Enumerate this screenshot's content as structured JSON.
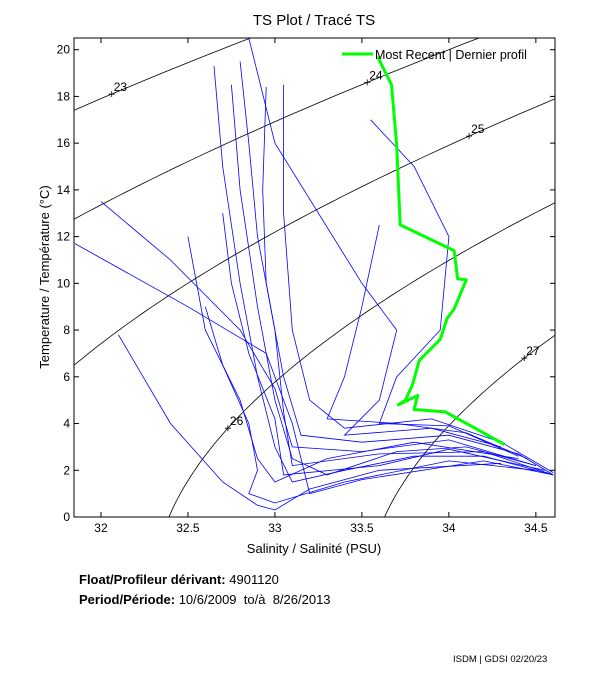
{
  "chart_data": {
    "type": "line",
    "title": "TS Plot / Tracé TS",
    "xlabel": "Salinity / Salinité (PSU)",
    "ylabel": "Temperature / Température (°C)",
    "xlim": [
      31.845,
      34.61
    ],
    "ylim": [
      0,
      20.5
    ],
    "xticks": [
      "32",
      "32.5",
      "33",
      "33.5",
      "34",
      "34.5"
    ],
    "yticks": [
      "0",
      "2",
      "4",
      "6",
      "8",
      "10",
      "12",
      "14",
      "16",
      "18",
      "20"
    ],
    "grid": false,
    "legend": {
      "position": "top-right",
      "entries": [
        "Most Recent | Dernier profil"
      ]
    },
    "density_contours": {
      "levels": [
        23,
        24,
        25,
        26,
        27
      ],
      "labels": [
        "23",
        "24",
        "25",
        "26",
        "27"
      ],
      "color": "#000000"
    },
    "series": [
      {
        "name": "Most Recent | Dernier profil",
        "color": "#00ff00",
        "points": [
          [
            33.59,
            19.7
          ],
          [
            33.67,
            18.5
          ],
          [
            33.7,
            15.9
          ],
          [
            33.72,
            12.5
          ],
          [
            34.03,
            11.4
          ],
          [
            34.05,
            10.2
          ],
          [
            34.1,
            10.15
          ],
          [
            34.03,
            8.9
          ],
          [
            33.99,
            8.5
          ],
          [
            33.95,
            7.6
          ],
          [
            33.83,
            6.7
          ],
          [
            33.79,
            5.65
          ],
          [
            33.75,
            5.0
          ],
          [
            33.71,
            4.8
          ],
          [
            33.82,
            5.2
          ],
          [
            33.8,
            4.6
          ],
          [
            33.98,
            4.5
          ],
          [
            34.15,
            3.8
          ],
          [
            34.32,
            3.1
          ]
        ]
      },
      {
        "color": "#0000ff",
        "profiles": [
          [
            [
              32.65,
              19.3
            ],
            [
              32.7,
              15
            ],
            [
              32.8,
              10
            ],
            [
              32.9,
              6
            ],
            [
              33.0,
              3
            ],
            [
              33.1,
              1.5
            ],
            [
              33.4,
              2.0
            ],
            [
              33.8,
              2.6
            ],
            [
              34.2,
              2.6
            ],
            [
              34.6,
              1.8
            ]
          ],
          [
            [
              32.75,
              18.5
            ],
            [
              32.8,
              14
            ],
            [
              32.9,
              9
            ],
            [
              33.0,
              5
            ],
            [
              33.1,
              2.5
            ],
            [
              33.3,
              1.8
            ],
            [
              33.7,
              2.8
            ],
            [
              34.1,
              3.0
            ],
            [
              34.5,
              2.2
            ]
          ],
          [
            [
              32.95,
              18.4
            ],
            [
              32.93,
              14
            ],
            [
              32.95,
              10
            ],
            [
              33.05,
              6
            ],
            [
              33.15,
              3.5
            ],
            [
              33.5,
              3.2
            ],
            [
              34.0,
              3.5
            ],
            [
              34.4,
              2.7
            ],
            [
              34.6,
              1.8
            ]
          ],
          [
            [
              32.85,
              20.5
            ],
            [
              33.0,
              16
            ],
            [
              33.5,
              10
            ],
            [
              33.7,
              8
            ],
            [
              33.6,
              5
            ],
            [
              33.4,
              3.5
            ],
            [
              33.9,
              3.8
            ],
            [
              34.3,
              3.0
            ]
          ],
          [
            [
              33.55,
              17
            ],
            [
              33.8,
              15
            ],
            [
              34.0,
              12
            ],
            [
              33.95,
              8
            ],
            [
              33.7,
              6
            ],
            [
              33.6,
              4
            ],
            [
              34.0,
              3.9
            ],
            [
              34.4,
              2.6
            ]
          ],
          [
            [
              32.0,
              13.5
            ],
            [
              32.4,
              11
            ],
            [
              32.8,
              8
            ],
            [
              33.0,
              5.5
            ],
            [
              33.1,
              3
            ],
            [
              33.5,
              2.8
            ],
            [
              34.0,
              3.3
            ],
            [
              34.5,
              2.2
            ]
          ],
          [
            [
              31.85,
              11.7
            ],
            [
              32.5,
              9
            ],
            [
              32.95,
              7
            ],
            [
              33.1,
              4
            ],
            [
              33.2,
              1
            ],
            [
              33.5,
              1.6
            ],
            [
              34.2,
              2.4
            ],
            [
              34.6,
              1.8
            ]
          ],
          [
            [
              32.1,
              7.8
            ],
            [
              32.4,
              4
            ],
            [
              32.7,
              1.5
            ],
            [
              32.9,
              0.5
            ],
            [
              33.0,
              0.3
            ],
            [
              33.2,
              1.2
            ],
            [
              33.6,
              2.0
            ],
            [
              34.3,
              2.3
            ]
          ],
          [
            [
              32.5,
              12
            ],
            [
              32.6,
              8
            ],
            [
              32.8,
              5
            ],
            [
              32.9,
              2.5
            ],
            [
              33.0,
              1.5
            ],
            [
              33.3,
              2.5
            ],
            [
              33.8,
              3.2
            ],
            [
              34.4,
              2.5
            ]
          ],
          [
            [
              33.05,
              18.5
            ],
            [
              33.05,
              13
            ],
            [
              33.1,
              8
            ],
            [
              33.2,
              5
            ],
            [
              33.4,
              3.8
            ],
            [
              33.9,
              4.2
            ],
            [
              34.3,
              3.2
            ],
            [
              34.6,
              1.9
            ]
          ],
          [
            [
              32.6,
              9
            ],
            [
              32.7,
              6.5
            ],
            [
              32.85,
              4
            ],
            [
              32.9,
              2
            ],
            [
              32.85,
              1
            ],
            [
              33.0,
              0.6
            ],
            [
              33.4,
              1.5
            ],
            [
              34.0,
              2.4
            ],
            [
              34.5,
              2.0
            ]
          ],
          [
            [
              33.6,
              12.5
            ],
            [
              33.5,
              9
            ],
            [
              33.4,
              6
            ],
            [
              33.3,
              4.2
            ],
            [
              33.7,
              4.0
            ],
            [
              34.1,
              3.6
            ],
            [
              34.45,
              2.5
            ]
          ],
          [
            [
              32.8,
              19.5
            ],
            [
              32.85,
              16
            ],
            [
              32.9,
              12
            ],
            [
              33.0,
              8
            ],
            [
              33.05,
              4.5
            ],
            [
              33.1,
              2.2
            ],
            [
              33.6,
              2.7
            ],
            [
              34.2,
              2.8
            ],
            [
              34.6,
              1.8
            ]
          ],
          [
            [
              32.7,
              13
            ],
            [
              32.75,
              10
            ],
            [
              32.85,
              7
            ],
            [
              33.0,
              4.2
            ],
            [
              33.05,
              1.8
            ],
            [
              33.6,
              2.2
            ],
            [
              34.0,
              2.9
            ],
            [
              34.55,
              2.0
            ]
          ]
        ]
      }
    ]
  },
  "info": {
    "float_label": "Float/Profileur dérivant:",
    "float_value": "4901120",
    "period_label": "Period/Période:",
    "period_from": "10/6/2009",
    "period_to_label": "to/à",
    "period_to": "8/26/2013"
  },
  "footer": "ISDM | GDSI  02/20/23"
}
